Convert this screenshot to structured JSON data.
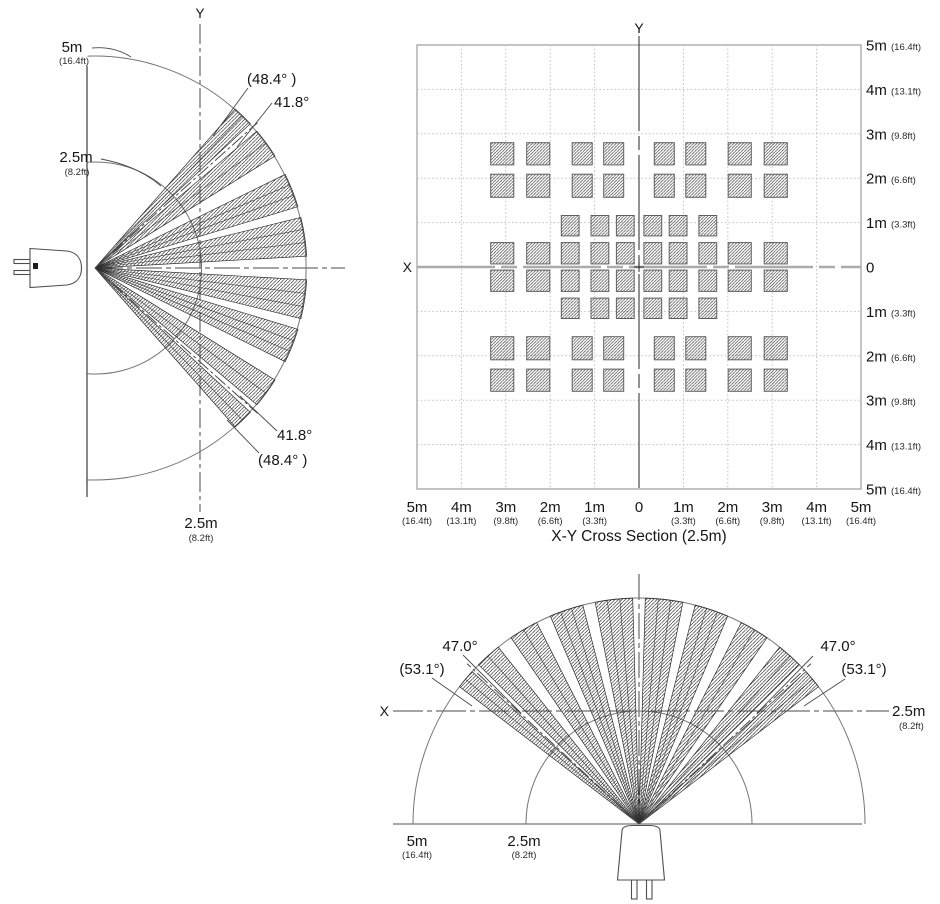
{
  "side_view": {
    "axis_y_label": "Y",
    "range_5m": {
      "m": "5m",
      "ft": "(16.4ft)"
    },
    "range_2_5m": {
      "m": "2.5m",
      "ft": "(8.2ft)"
    },
    "angle_upper_max": "(48.4° )",
    "angle_upper_nominal": "41.8°",
    "angle_lower_nominal": "41.8°",
    "angle_lower_max": "(48.4° )",
    "baseline_2_5m": {
      "m": "2.5m",
      "ft": "(8.2ft)"
    },
    "beams_deg_from_horizontal": [
      [
        3.2,
        13.8
      ],
      [
        16.8,
        26.2
      ],
      [
        31.9,
        40.2
      ],
      [
        42.9,
        48.6
      ]
    ],
    "beam_splits_deg": [
      [
        6.9,
        10.5
      ],
      [
        20.1,
        23.1
      ],
      [
        36.2
      ],
      [
        45.9
      ]
    ],
    "chain_angle_deg": 41.8,
    "arc_radii_m": [
      2.5,
      5
    ]
  },
  "cross_section": {
    "title": "X-Y Cross Section (2.5m)",
    "axis_x_label": "X",
    "axis_y_label": "Y",
    "extent_m": 5,
    "grid_step_m": 1,
    "bottom_ticks": [
      {
        "m": "5m",
        "ft": "(16.4ft)"
      },
      {
        "m": "4m",
        "ft": "(13.1ft)"
      },
      {
        "m": "3m",
        "ft": "(9.8ft)"
      },
      {
        "m": "2m",
        "ft": "(6.6ft)"
      },
      {
        "m": "1m",
        "ft": "(3.3ft)"
      },
      {
        "m": "0",
        "ft": ""
      },
      {
        "m": "1m",
        "ft": "(3.3ft)"
      },
      {
        "m": "2m",
        "ft": "(6.6ft)"
      },
      {
        "m": "3m",
        "ft": "(9.8ft)"
      },
      {
        "m": "4m",
        "ft": "(13.1ft)"
      },
      {
        "m": "5m",
        "ft": "(16.4ft)"
      }
    ],
    "right_ticks": [
      {
        "m": "5m",
        "ft": "(16.4ft)"
      },
      {
        "m": "4m",
        "ft": "(13.1ft)"
      },
      {
        "m": "3m",
        "ft": "(9.8ft)"
      },
      {
        "m": "2m",
        "ft": "(6.6ft)"
      },
      {
        "m": "1m",
        "ft": "(3.3ft)"
      },
      {
        "m": "0",
        "ft": ""
      },
      {
        "m": "1m",
        "ft": "(3.3ft)"
      },
      {
        "m": "2m",
        "ft": "(6.6ft)"
      },
      {
        "m": "3m",
        "ft": "(9.8ft)"
      },
      {
        "m": "4m",
        "ft": "(13.1ft)"
      },
      {
        "m": "5m",
        "ft": "(16.4ft)"
      }
    ],
    "col_sets": {
      "outer": [
        [
          -3.08,
          0.52
        ],
        [
          -2.27,
          0.52
        ],
        [
          -1.28,
          0.45
        ],
        [
          -0.57,
          0.45
        ],
        [
          0.57,
          0.45
        ],
        [
          1.28,
          0.45
        ],
        [
          2.27,
          0.52
        ],
        [
          3.08,
          0.52
        ]
      ],
      "inner": [
        [
          -1.55,
          0.4
        ],
        [
          -0.88,
          0.4
        ],
        [
          -0.31,
          0.4
        ],
        [
          0.31,
          0.4
        ],
        [
          0.88,
          0.4
        ],
        [
          1.55,
          0.4
        ]
      ],
      "full": [
        [
          -3.08,
          0.52
        ],
        [
          -2.27,
          0.52
        ],
        [
          -1.55,
          0.4
        ],
        [
          -0.88,
          0.4
        ],
        [
          -0.31,
          0.4
        ],
        [
          0.31,
          0.4
        ],
        [
          0.88,
          0.4
        ],
        [
          1.55,
          0.4
        ],
        [
          2.27,
          0.52
        ],
        [
          3.08,
          0.52
        ]
      ]
    },
    "zone_rows": [
      {
        "y": 2.55,
        "h": 0.5,
        "cols": "outer"
      },
      {
        "y": 1.83,
        "h": 0.52,
        "cols": "outer"
      },
      {
        "y": 0.93,
        "h": 0.46,
        "cols": "inner"
      },
      {
        "y": 0.31,
        "h": 0.48,
        "cols": "full"
      },
      {
        "y": -0.31,
        "h": 0.48,
        "cols": "full"
      },
      {
        "y": -0.93,
        "h": 0.46,
        "cols": "inner"
      },
      {
        "y": -1.83,
        "h": 0.52,
        "cols": "outer"
      },
      {
        "y": -2.55,
        "h": 0.5,
        "cols": "outer"
      }
    ]
  },
  "top_view": {
    "axis_x_label": "X",
    "height_2_5m": {
      "m": "2.5m",
      "ft": "(8.2ft)"
    },
    "range_5m": {
      "m": "5m",
      "ft": "(16.4ft)"
    },
    "range_2_5m": {
      "m": "2.5m",
      "ft": "(8.2ft)"
    },
    "angle_left_nominal": "47.0°",
    "angle_left_max": "(53.1°)",
    "angle_right_nominal": "47.0°",
    "angle_right_max": "(53.1°)",
    "beams_deg_from_vertical": [
      [
        1.6,
        11.2
      ],
      [
        14.4,
        23.1
      ],
      [
        26.9,
        34.5
      ],
      [
        38.5,
        45.2
      ],
      [
        47.6,
        52.6
      ]
    ],
    "beam_splits_deg": [
      [
        4.9,
        8.1
      ],
      [
        17.4,
        20.3
      ],
      [
        30.7
      ],
      [
        42.0
      ],
      [
        50.2
      ]
    ],
    "chain_angle_deg": 47.0,
    "arc_radii_m": [
      2.5,
      5
    ]
  },
  "colors": {
    "ink": "#161616",
    "hatch": "#3f3f3f",
    "zone_hatch": "#555555",
    "grid_dot": "#bfbfbf",
    "axis_gray": "#ababab",
    "arc_gray": "#767676"
  }
}
